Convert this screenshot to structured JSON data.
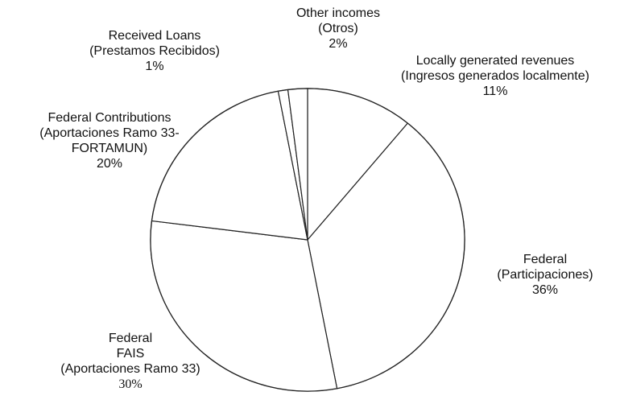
{
  "chart_data": {
    "type": "pie",
    "slices": [
      {
        "label_lines": [
          "Locally generated revenues",
          "(Ingresos generados localmente)"
        ],
        "value": 11,
        "value_label": "11%"
      },
      {
        "label_lines": [
          "Federal",
          "(Participaciones)"
        ],
        "value": 36,
        "value_label": "36%"
      },
      {
        "label_lines": [
          "Federal",
          "FAIS",
          "(Aportaciones Ramo 33)"
        ],
        "value": 30,
        "value_label": "30%"
      },
      {
        "label_lines": [
          "Federal Contributions",
          "(Aportaciones Ramo 33-",
          "FORTAMUN)"
        ],
        "value": 20,
        "value_label": "20%"
      },
      {
        "label_lines": [
          "Received Loans",
          "(Prestamos Recibidos)"
        ],
        "value": 1,
        "value_label": "1%"
      },
      {
        "label_lines": [
          "Other incomes",
          "(Otros)"
        ],
        "value": 2,
        "value_label": "2%"
      }
    ],
    "start_angle": "12 o'clock",
    "direction": "clockwise",
    "fill": "#ffffff",
    "stroke": "#222222"
  }
}
